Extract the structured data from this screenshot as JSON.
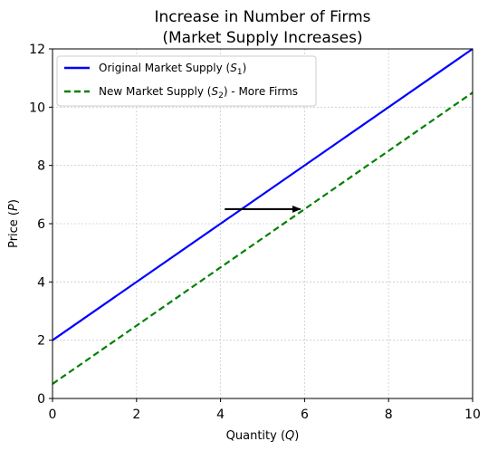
{
  "chart_data": {
    "type": "line",
    "title_line1": "Increase in Number of Firms",
    "title_line2": "(Market Supply Increases)",
    "xlabel_prefix": "Quantity (",
    "xlabel_var": "Q",
    "xlabel_suffix": ")",
    "ylabel_prefix": "Price (",
    "ylabel_var": "P",
    "ylabel_suffix": ")",
    "xlim": [
      0,
      10
    ],
    "ylim": [
      0,
      12
    ],
    "xticks": [
      0,
      2,
      4,
      6,
      8,
      10
    ],
    "yticks": [
      0,
      2,
      4,
      6,
      8,
      10,
      12
    ],
    "xtick_labels": [
      "0",
      "2",
      "4",
      "6",
      "8",
      "10"
    ],
    "ytick_labels": [
      "0",
      "2",
      "4",
      "6",
      "8",
      "10",
      "12"
    ],
    "grid": true,
    "legend_position": "upper-left",
    "series": [
      {
        "name_prefix": "Original Market Supply (",
        "name_var": "S",
        "name_sub": "1",
        "name_suffix": ")",
        "x": [
          0,
          10
        ],
        "y": [
          2,
          12
        ],
        "color": "#0000ff",
        "style": "solid"
      },
      {
        "name_prefix": "New Market Supply (",
        "name_var": "S",
        "name_sub": "2",
        "name_suffix": ") - More Firms",
        "x": [
          0,
          10
        ],
        "y": [
          0.5,
          10.5
        ],
        "color": "#008000",
        "style": "dashed"
      }
    ],
    "annotations": [
      {
        "type": "arrow",
        "from": [
          4.1,
          6.5
        ],
        "to": [
          5.9,
          6.5
        ],
        "color": "#000000"
      }
    ]
  }
}
